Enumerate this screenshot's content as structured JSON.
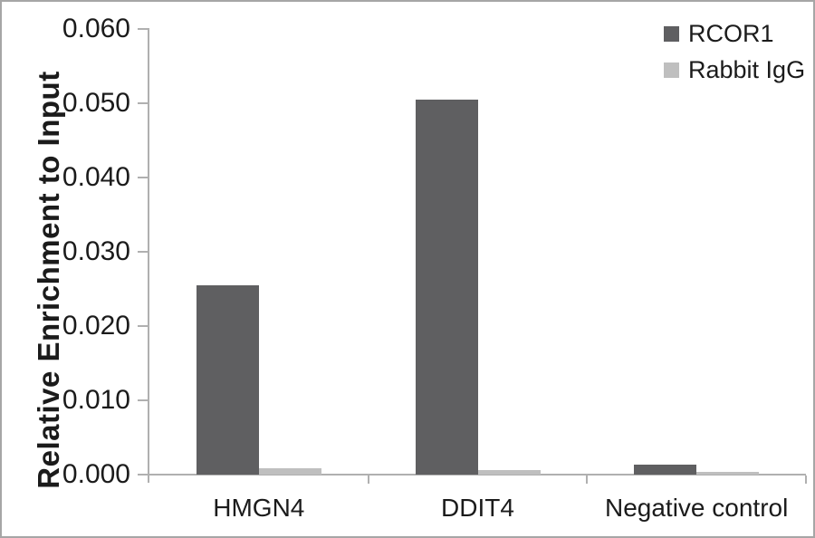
{
  "figure": {
    "background": "#ffffff",
    "border_color": "#a6a6a6"
  },
  "chart_data": {
    "type": "bar",
    "title": "",
    "xlabel": "",
    "ylabel": "Relative Enrichment to Input",
    "categories": [
      "HMGN4",
      "DDIT4",
      "Negative control"
    ],
    "series": [
      {
        "name": "RCOR1",
        "color": "#5f5f61",
        "values": [
          0.0255,
          0.0505,
          0.0013
        ]
      },
      {
        "name": "Rabbit IgG",
        "color": "#bfbfbf",
        "values": [
          0.0008,
          0.0006,
          0.0004
        ]
      }
    ],
    "ylim": [
      0,
      0.06
    ],
    "ytick_step": 0.01,
    "ytick_decimals": 3,
    "ytick_labels": [
      "0.000",
      "0.010",
      "0.020",
      "0.030",
      "0.040",
      "0.050",
      "0.060"
    ],
    "grid": false,
    "legend_position": "top-right",
    "axis_color": "#b0b0b0",
    "text_color": "#1b1b1b"
  }
}
